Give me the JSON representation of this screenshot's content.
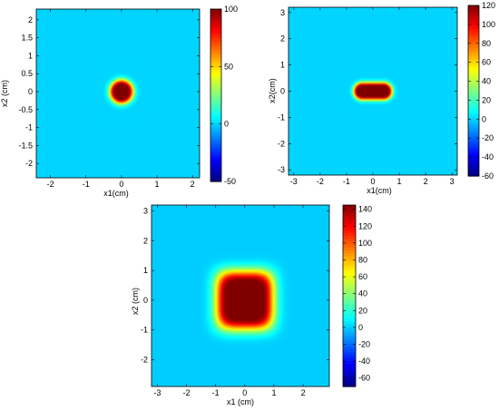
{
  "chart_data": [
    {
      "type": "heatmap",
      "xlabel": "x1(cm)",
      "ylabel": "x2 (cm)",
      "xlim": [
        -2.4,
        2.2
      ],
      "ylim": [
        -2.4,
        2.3
      ],
      "xticks": [
        -2,
        -1,
        0,
        1,
        2
      ],
      "yticks": [
        -2,
        -1.5,
        -1,
        -0.5,
        0,
        0.5,
        1,
        1.5,
        2
      ],
      "ytick_labels": [
        "-2",
        "-1.5",
        "-1",
        "-0.5",
        "0",
        "0.5",
        "1",
        "1.5",
        "2"
      ],
      "colorbar": {
        "min": -50,
        "max": 100,
        "ticks": [
          -50,
          0,
          50,
          100
        ]
      },
      "field": {
        "shape": "circle",
        "center": [
          0,
          0
        ],
        "half_width": [
          0.35,
          0.35
        ],
        "peak": 100,
        "background": 0
      }
    },
    {
      "type": "heatmap",
      "xlabel": "x1(cm)",
      "ylabel": "x2(cm)",
      "xlim": [
        -3.2,
        3.2
      ],
      "ylim": [
        -3.2,
        3.2
      ],
      "xticks": [
        -3,
        -2,
        -1,
        0,
        1,
        2,
        3
      ],
      "yticks": [
        -3,
        -2,
        -1,
        0,
        1,
        2,
        3
      ],
      "colorbar": {
        "min": -60,
        "max": 120,
        "ticks": [
          -60,
          -40,
          -20,
          0,
          20,
          40,
          60,
          80,
          100,
          120
        ]
      },
      "field": {
        "shape": "stadium",
        "center": [
          0,
          0
        ],
        "half_width": [
          0.75,
          0.35
        ],
        "peak": 120,
        "background": 0
      }
    },
    {
      "type": "heatmap",
      "xlabel": "x1 (cm)",
      "ylabel": "x2 (cm)",
      "xlim": [
        -3.2,
        2.9
      ],
      "ylim": [
        -2.9,
        3.2
      ],
      "xticks": [
        -3,
        -2,
        -1,
        0,
        1,
        2
      ],
      "yticks": [
        -2,
        -1,
        0,
        1,
        2,
        3
      ],
      "colorbar": {
        "min": -70,
        "max": 145,
        "ticks": [
          -60,
          -40,
          -20,
          0,
          20,
          40,
          60,
          80,
          100,
          120,
          140
        ]
      },
      "field": {
        "shape": "rounded-square",
        "center": [
          0,
          0
        ],
        "half_width": [
          0.9,
          0.9
        ],
        "peak": 145,
        "background": 0
      }
    }
  ]
}
